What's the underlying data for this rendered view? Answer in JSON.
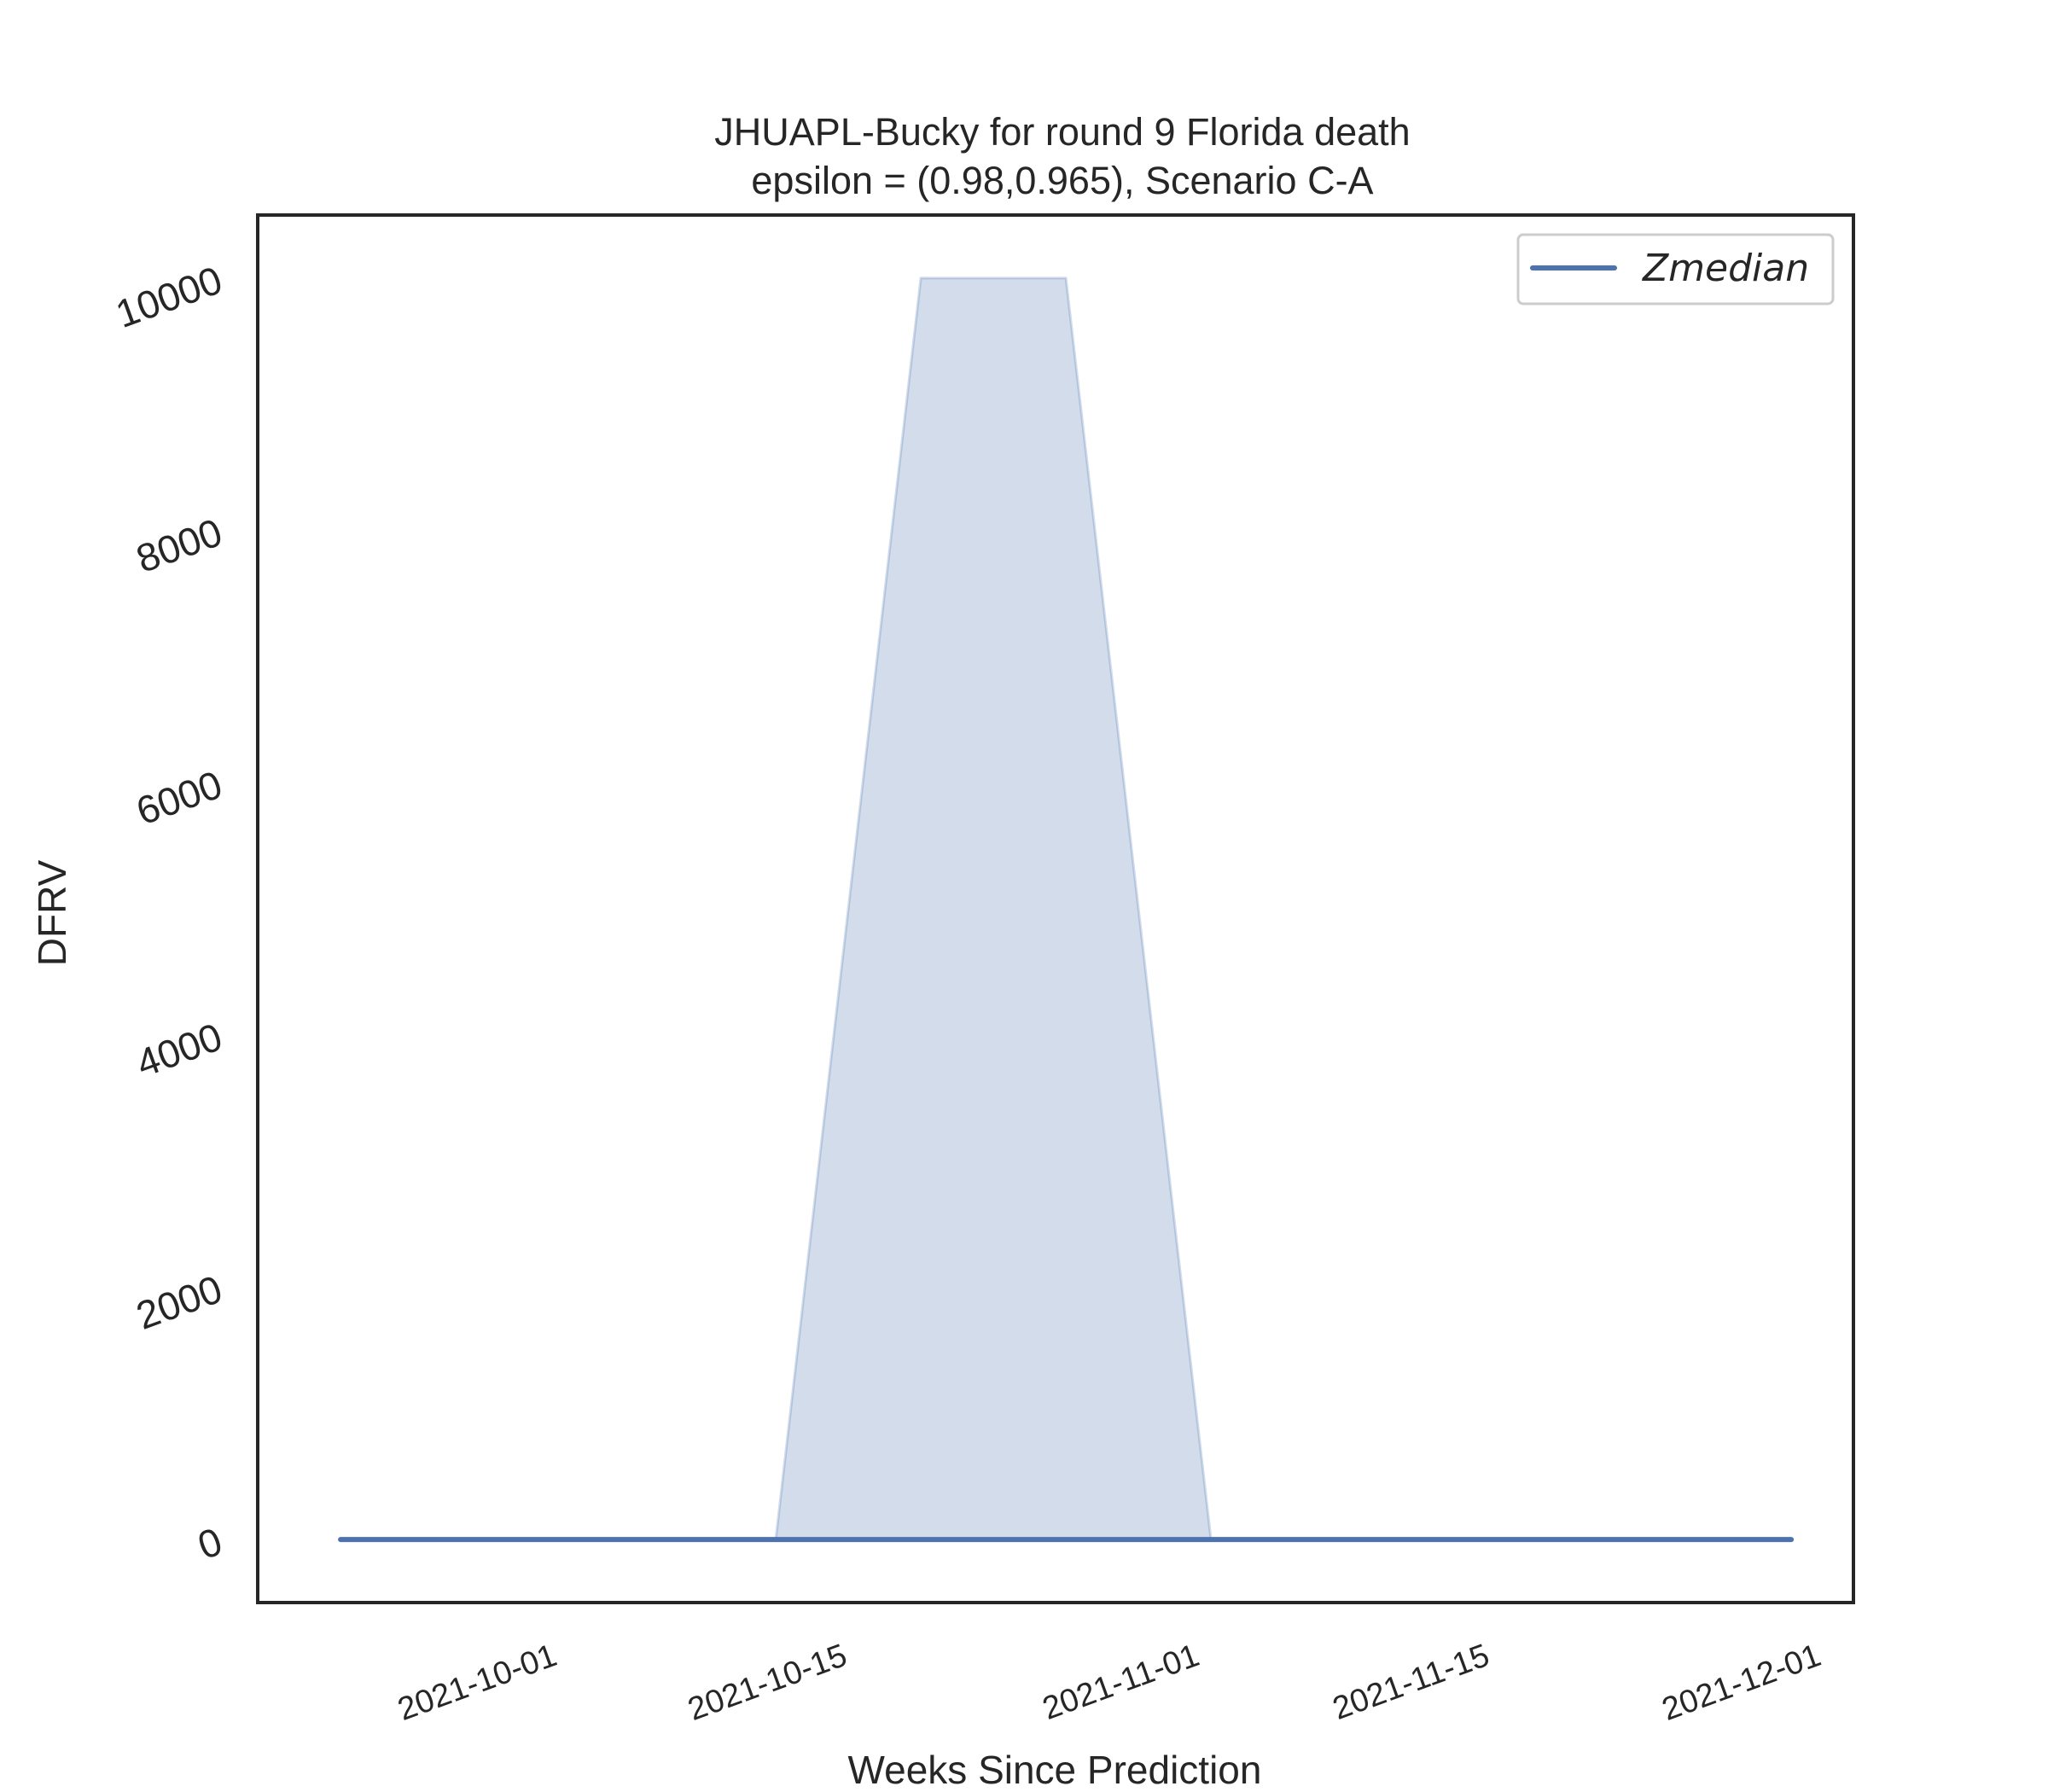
{
  "chart_data": {
    "type": "area",
    "title": "JHUAPL-Bucky for round 9 Florida  death",
    "subtitle": "epsilon = (0.98,0.965), Scenario C-A",
    "xlabel": "Weeks Since Prediction",
    "ylabel": "DFRV",
    "x": [
      "2021-09-25",
      "2021-10-02",
      "2021-10-09",
      "2021-10-16",
      "2021-10-23",
      "2021-10-30",
      "2021-11-06",
      "2021-11-13",
      "2021-11-20",
      "2021-11-27",
      "2021-12-04"
    ],
    "series": [
      {
        "name": "Zmedian",
        "type": "line",
        "values": [
          0,
          0,
          0,
          0,
          0,
          0,
          0,
          0,
          0,
          0,
          0
        ]
      },
      {
        "type": "band",
        "lower": [
          0,
          0,
          0,
          0,
          0,
          0,
          0,
          0,
          0,
          0,
          0
        ],
        "upper": [
          0,
          0,
          0,
          0,
          10000,
          10000,
          0,
          0,
          0,
          0,
          0
        ]
      }
    ],
    "xticks": [
      "2021-10-01",
      "2021-10-15",
      "2021-11-01",
      "2021-11-15",
      "2021-12-01"
    ],
    "yticks": [
      0,
      2000,
      4000,
      6000,
      8000,
      10000
    ],
    "xlim": [
      "2021-09-21",
      "2021-12-07"
    ],
    "ylim": [
      -500,
      10500
    ],
    "legend": "top-right",
    "grid": false,
    "colors": {
      "line": "#4c72b0",
      "band": "#4c72b0",
      "frame": "#262626"
    }
  }
}
